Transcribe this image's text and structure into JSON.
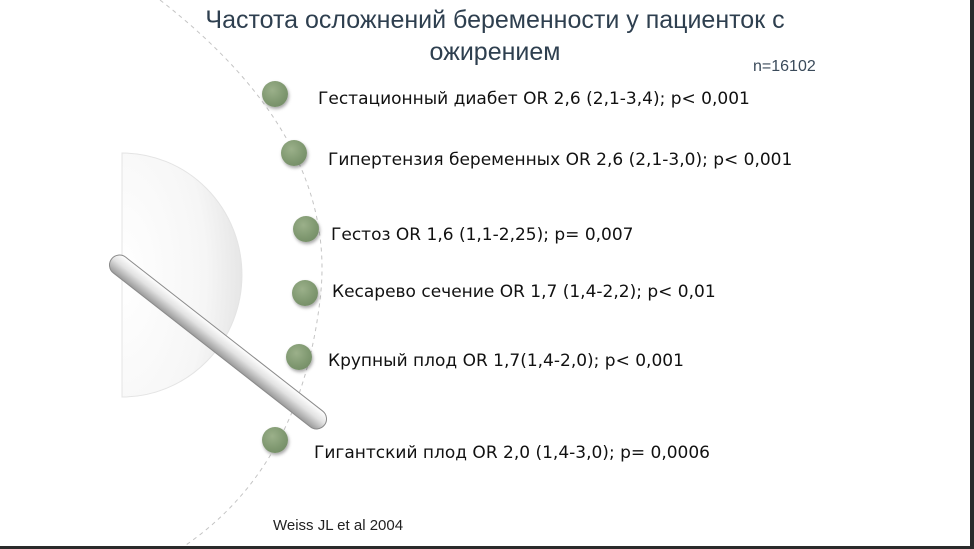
{
  "slide": {
    "title": "Частота осложнений беременности у пациенток с ожирением",
    "sample_size": "n=16102",
    "items": [
      {
        "text": "Гестационный диабет OR 2,6 (2,1-3,4); p< 0,001"
      },
      {
        "text": "Гипертензия беременных OR 2,6 (2,1-3,0); p< 0,001"
      },
      {
        "text": "Гестоз  OR 1,6 (1,1-2,25); p= 0,007"
      },
      {
        "text": "Кесарево сечение OR 1,7 (1,4-2,2); p< 0,01"
      },
      {
        "text": "Крупный плод OR 1,7(1,4-2,0); p< 0,001"
      },
      {
        "text": "Гигантский плод OR 2,0 (1,4-3,0); p= 0,0006"
      }
    ],
    "citation": "Weiss JL et al 2004"
  },
  "colors": {
    "title": "#2e3f4f",
    "bullet": "#7f9870",
    "text": "#111111"
  },
  "icons": {
    "bullet": "green-circle-bullet",
    "decoration": "semicircle-with-bar"
  }
}
